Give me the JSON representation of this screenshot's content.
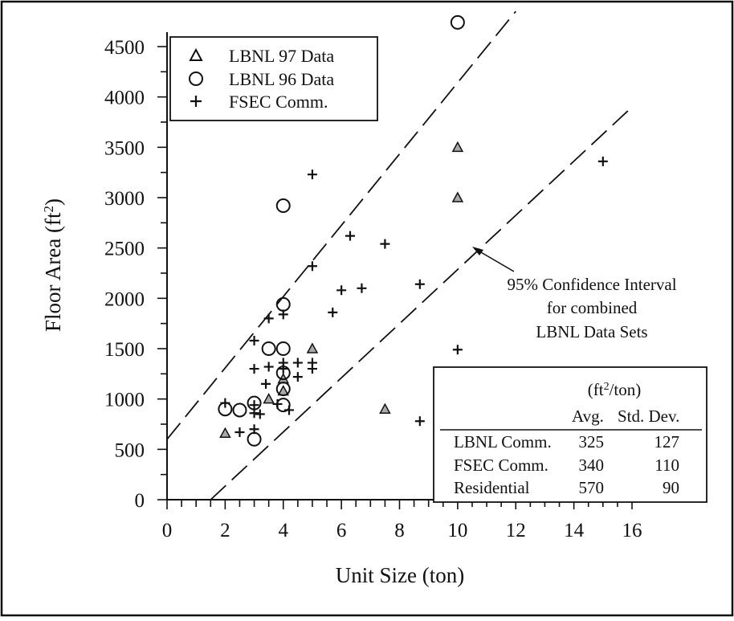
{
  "chart_data": {
    "type": "scatter",
    "xlabel": "Unit Size (ton)",
    "ylabel": "Floor Area (ft²)",
    "xlim": [
      0,
      16
    ],
    "ylim": [
      0,
      4800
    ],
    "xticks": [
      "0",
      "2",
      "4",
      "6",
      "8",
      "10",
      "12",
      "14",
      "16"
    ],
    "yticks": [
      "0",
      "500",
      "1000",
      "1500",
      "2000",
      "2500",
      "3000",
      "3500",
      "4000",
      "4500"
    ],
    "legend": {
      "position": "top-left",
      "entries": [
        "LBNL 97 Data",
        "LBNL 96 Data",
        "FSEC Comm."
      ]
    },
    "series": [
      {
        "name": "LBNL 97 Data",
        "marker": "triangle",
        "points": [
          [
            2,
            660
          ],
          [
            3.5,
            1000
          ],
          [
            4,
            1080
          ],
          [
            4,
            1200
          ],
          [
            5,
            1500
          ],
          [
            7.5,
            900
          ],
          [
            10,
            3000
          ],
          [
            10,
            3500
          ]
        ]
      },
      {
        "name": "LBNL 96 Data",
        "marker": "circle",
        "points": [
          [
            2,
            900
          ],
          [
            2.5,
            890
          ],
          [
            3,
            600
          ],
          [
            3,
            960
          ],
          [
            3.5,
            1500
          ],
          [
            4,
            1500
          ],
          [
            4,
            1260
          ],
          [
            4,
            1100
          ],
          [
            4,
            940
          ],
          [
            4,
            1940
          ],
          [
            4,
            2920
          ],
          [
            10,
            4740
          ]
        ]
      },
      {
        "name": "FSEC Comm.",
        "marker": "plus",
        "points": [
          [
            2,
            960
          ],
          [
            2.5,
            670
          ],
          [
            3,
            700
          ],
          [
            3,
            860
          ],
          [
            3,
            940
          ],
          [
            3,
            1300
          ],
          [
            3,
            1580
          ],
          [
            3.2,
            850
          ],
          [
            3.4,
            1150
          ],
          [
            3.5,
            1320
          ],
          [
            3.5,
            1800
          ],
          [
            3.8,
            950
          ],
          [
            4,
            1300
          ],
          [
            4,
            1360
          ],
          [
            4,
            1840
          ],
          [
            4.2,
            890
          ],
          [
            4.5,
            1220
          ],
          [
            4.5,
            1360
          ],
          [
            5,
            1300
          ],
          [
            5,
            1360
          ],
          [
            5,
            2320
          ],
          [
            5,
            3230
          ],
          [
            5.7,
            1860
          ],
          [
            6,
            2080
          ],
          [
            6.3,
            2620
          ],
          [
            6.7,
            2100
          ],
          [
            7.5,
            2540
          ],
          [
            8.7,
            2140
          ],
          [
            8.7,
            780
          ],
          [
            10,
            1490
          ],
          [
            15,
            3360
          ]
        ]
      }
    ],
    "confidence_lines": [
      {
        "name": "upper",
        "points": [
          [
            0,
            600
          ],
          [
            12,
            4850
          ]
        ]
      },
      {
        "name": "lower",
        "points": [
          [
            1.5,
            0
          ],
          [
            16,
            3900
          ]
        ]
      }
    ],
    "annotation": {
      "lines": [
        "95% Confidence Interval",
        "for combined",
        "LBNL Data Sets"
      ]
    },
    "table": {
      "unit_prefix": "(ft",
      "unit_sup": "2",
      "unit_suffix": "/ton)",
      "headers": [
        "Avg.",
        "Std. Dev."
      ],
      "rows": [
        {
          "label": "LBNL Comm.",
          "avg": "325",
          "std": "127"
        },
        {
          "label": "FSEC Comm.",
          "avg": "340",
          "std": "110"
        },
        {
          "label": "Residential",
          "avg": "570",
          "std": "90"
        }
      ]
    }
  }
}
